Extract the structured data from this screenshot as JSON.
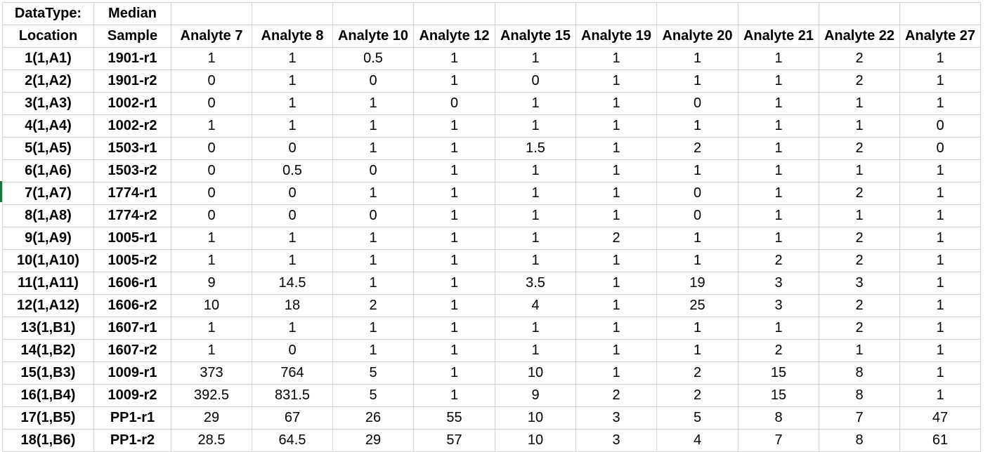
{
  "header": {
    "row1": [
      "DataType:",
      "Median",
      "",
      "",
      "",
      "",
      "",
      "",
      "",
      "",
      "",
      ""
    ],
    "row2": [
      "Location",
      "Sample",
      "Analyte 7",
      "Analyte 8",
      "Analyte 10",
      "Analyte 12",
      "Analyte 15",
      "Analyte 19",
      "Analyte 20",
      "Analyte 21",
      "Analyte 22",
      "Analyte 27"
    ]
  },
  "rows": [
    [
      "1(1,A1)",
      "1901-r1",
      "1",
      "1",
      "0.5",
      "1",
      "1",
      "1",
      "1",
      "1",
      "2",
      "1"
    ],
    [
      "2(1,A2)",
      "1901-r2",
      "0",
      "1",
      "0",
      "1",
      "0",
      "1",
      "1",
      "1",
      "2",
      "1"
    ],
    [
      "3(1,A3)",
      "1002-r1",
      "0",
      "1",
      "1",
      "0",
      "1",
      "1",
      "0",
      "1",
      "1",
      "1"
    ],
    [
      "4(1,A4)",
      "1002-r2",
      "1",
      "1",
      "1",
      "1",
      "1",
      "1",
      "1",
      "1",
      "1",
      "0"
    ],
    [
      "5(1,A5)",
      "1503-r1",
      "0",
      "0",
      "1",
      "1",
      "1.5",
      "1",
      "2",
      "1",
      "2",
      "0"
    ],
    [
      "6(1,A6)",
      "1503-r2",
      "0",
      "0.5",
      "0",
      "1",
      "1",
      "1",
      "1",
      "1",
      "1",
      "1"
    ],
    [
      "7(1,A7)",
      "1774-r1",
      "0",
      "0",
      "1",
      "1",
      "1",
      "1",
      "0",
      "1",
      "2",
      "1"
    ],
    [
      "8(1,A8)",
      "1774-r2",
      "0",
      "0",
      "0",
      "1",
      "1",
      "1",
      "0",
      "1",
      "1",
      "1"
    ],
    [
      "9(1,A9)",
      "1005-r1",
      "1",
      "1",
      "1",
      "1",
      "1",
      "2",
      "1",
      "1",
      "2",
      "1"
    ],
    [
      "10(1,A10)",
      "1005-r2",
      "1",
      "1",
      "1",
      "1",
      "1",
      "1",
      "1",
      "2",
      "2",
      "1"
    ],
    [
      "11(1,A11)",
      "1606-r1",
      "9",
      "14.5",
      "1",
      "1",
      "3.5",
      "1",
      "19",
      "3",
      "3",
      "1"
    ],
    [
      "12(1,A12)",
      "1606-r2",
      "10",
      "18",
      "2",
      "1",
      "4",
      "1",
      "25",
      "3",
      "2",
      "1"
    ],
    [
      "13(1,B1)",
      "1607-r1",
      "1",
      "1",
      "1",
      "1",
      "1",
      "1",
      "1",
      "1",
      "2",
      "1"
    ],
    [
      "14(1,B2)",
      "1607-r2",
      "1",
      "0",
      "1",
      "1",
      "1",
      "1",
      "1",
      "2",
      "1",
      "1"
    ],
    [
      "15(1,B3)",
      "1009-r1",
      "373",
      "764",
      "5",
      "1",
      "10",
      "1",
      "2",
      "15",
      "8",
      "1"
    ],
    [
      "16(1,B4)",
      "1009-r2",
      "392.5",
      "831.5",
      "5",
      "1",
      "9",
      "2",
      "2",
      "15",
      "8",
      "1"
    ],
    [
      "17(1,B5)",
      "PP1-r1",
      "29",
      "67",
      "26",
      "55",
      "10",
      "3",
      "5",
      "8",
      "7",
      "47"
    ],
    [
      "18(1,B6)",
      "PP1-r2",
      "28.5",
      "64.5",
      "29",
      "57",
      "10",
      "3",
      "4",
      "7",
      "8",
      "61"
    ]
  ],
  "colors": {
    "gridline": "#d4d4d4",
    "selected_row_marker": "#1e7145"
  }
}
